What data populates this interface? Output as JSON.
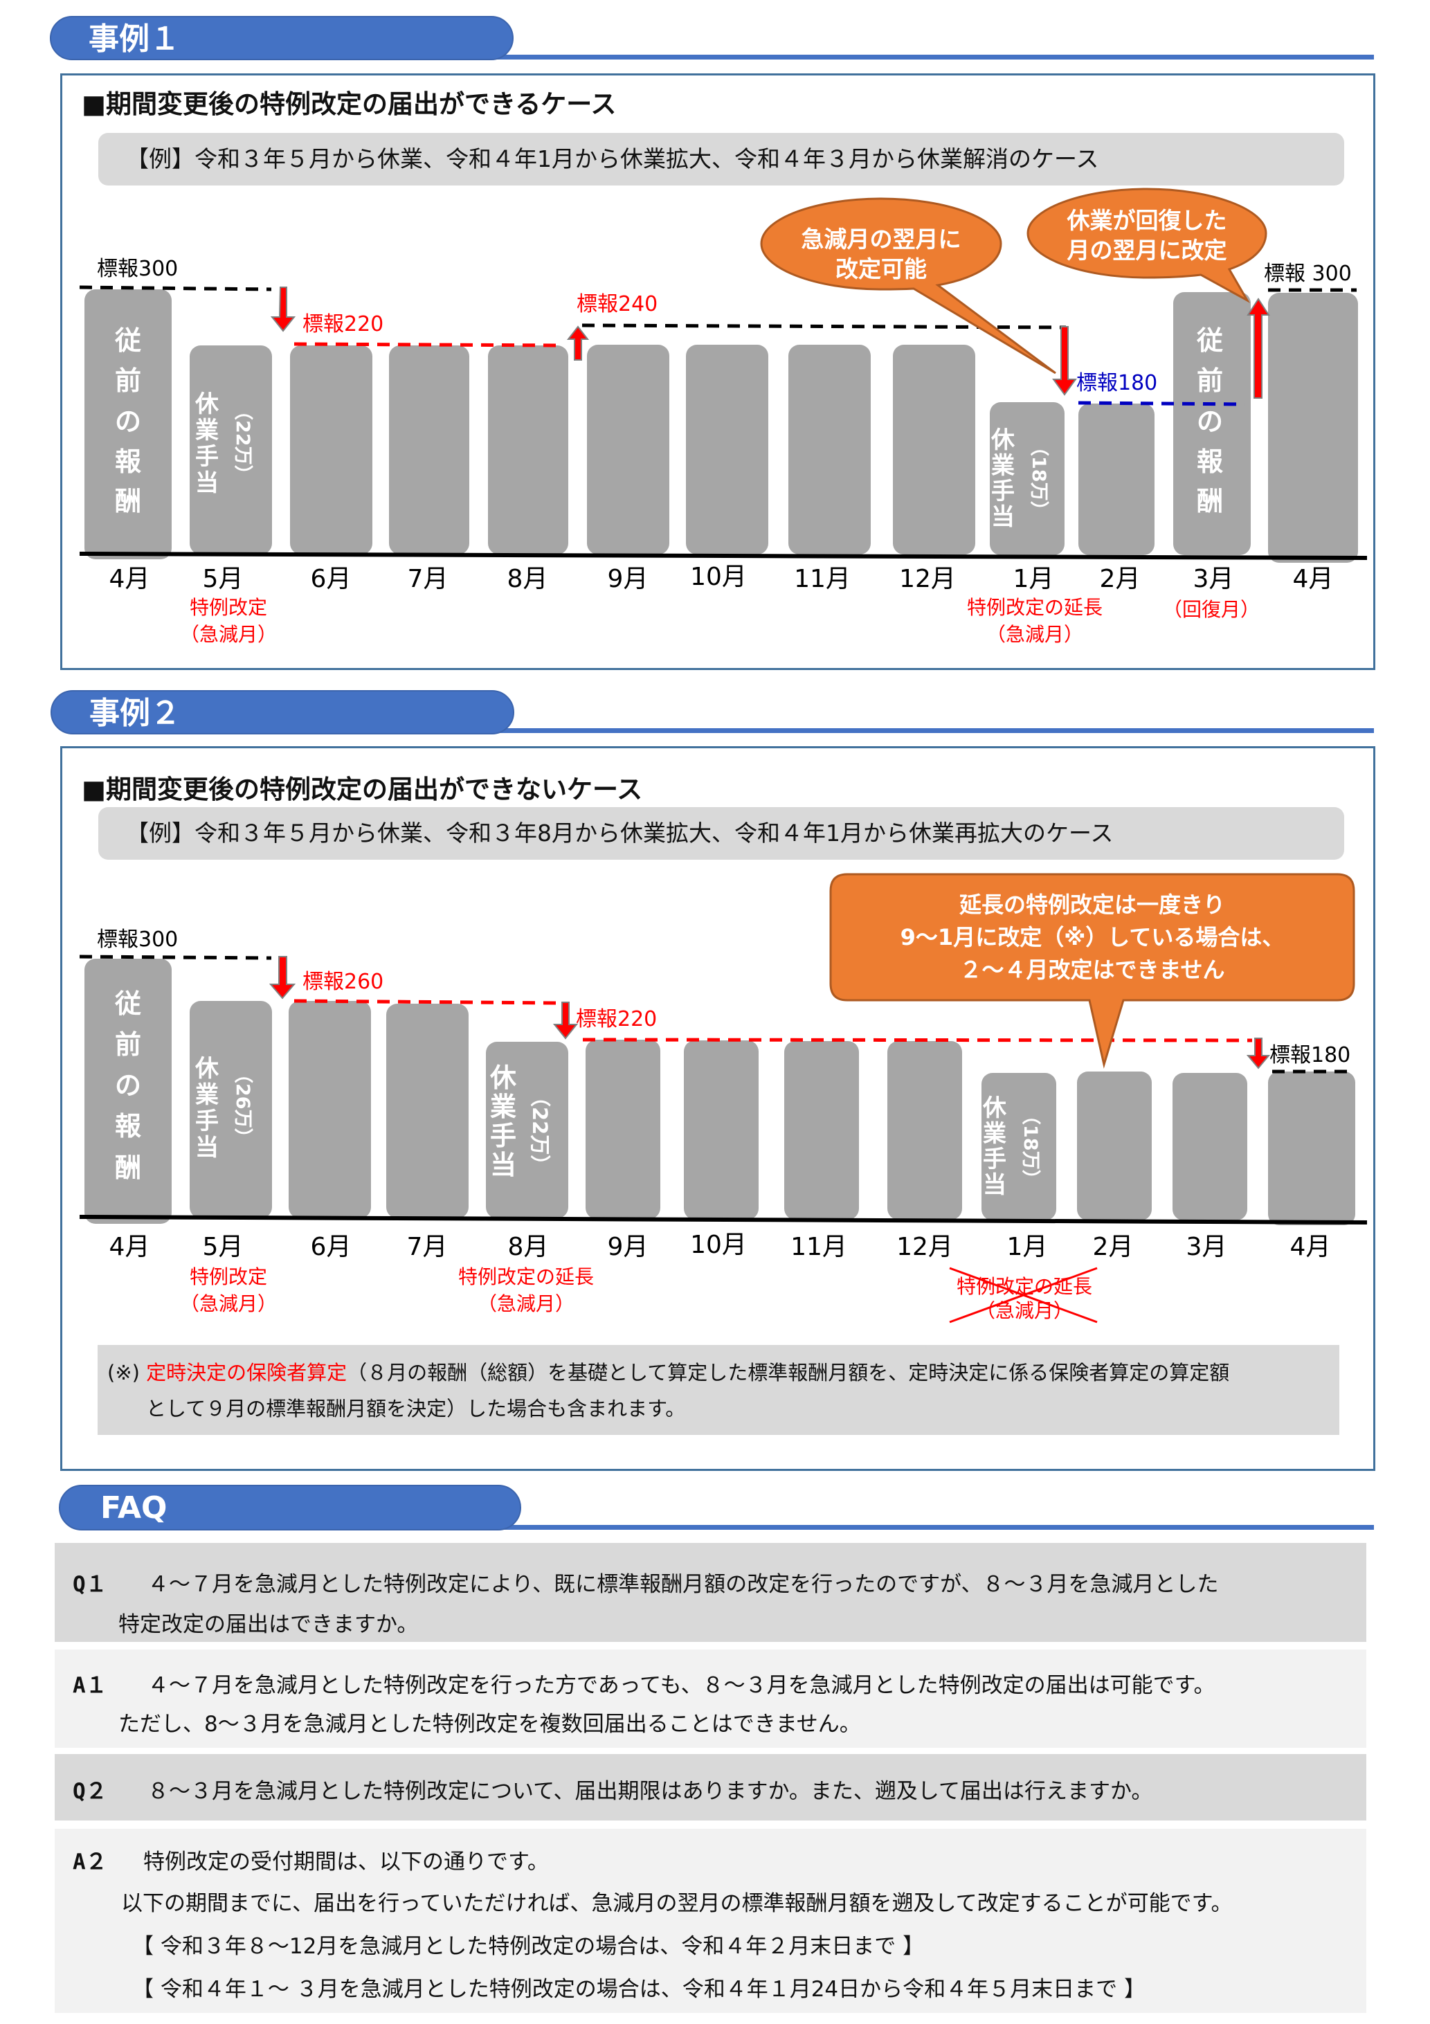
{
  "case1": {
    "header": "事例１",
    "title": "■期間変更後の特例改定の届出ができるケース",
    "example": "【例】令和３年５月から休業、令和４年1月から休業拡大、令和４年３月から休業解消のケース",
    "months": [
      "4月",
      "5月",
      "6月",
      "7月",
      "8月",
      "9月",
      "10月",
      "11月",
      "12月",
      "1月",
      "2月",
      "3月",
      "4月"
    ],
    "bar_labels": {
      "prior_pay": [
        "従",
        "前",
        "の",
        "報",
        "酬"
      ],
      "leave_allowance": [
        "休",
        "業",
        "手",
        "当"
      ],
      "may_amount": "（22万）",
      "jan_amount": "（18万）"
    },
    "standard_labels": {
      "s300": "標報300",
      "s220": "標報220",
      "s240": "標報240",
      "s180": "標報180",
      "s300_end": "標報 300"
    },
    "sublabels": {
      "may_line1": "特例改定",
      "may_line2": "（急減月）",
      "jan_line1": "特例改定の延長",
      "jan_line2": "（急減月）",
      "mar_line1": "（回復月）"
    },
    "callouts": {
      "bubble1_line1": "急減月の翌月に",
      "bubble1_line2": "改定可能",
      "bubble2_line1": "休業が回復した",
      "bubble2_line2": "月の翌月に改定"
    }
  },
  "case2": {
    "header": "事例２",
    "title": "■期間変更後の特例改定の届出ができないケース",
    "example": "【例】令和３年５月から休業、令和３年8月から休業拡大、令和４年1月から休業再拡大のケース",
    "months": [
      "4月",
      "5月",
      "6月",
      "7月",
      "8月",
      "9月",
      "10月",
      "11月",
      "12月",
      "1月",
      "2月",
      "3月",
      "4月"
    ],
    "bar_labels": {
      "prior_pay": [
        "従",
        "前",
        "の",
        "報",
        "酬"
      ],
      "leave_allowance": [
        "休",
        "業",
        "手",
        "当"
      ],
      "may_amount": "（26万）",
      "aug_amount": "（22万）",
      "jan_amount": "（18万）"
    },
    "standard_labels": {
      "s300": "標報300",
      "s260": "標報260",
      "s220": "標報220",
      "s180": "標報180"
    },
    "sublabels": {
      "may_line1": "特例改定",
      "may_line2": "（急減月）",
      "aug_line1": "特例改定の延長",
      "aug_line2": "（急減月）",
      "jan_line1": "特例改定の延長",
      "jan_line2": "（急減月）"
    },
    "callout": {
      "line1": "延長の特例改定は一度きり",
      "line2": "9～1月に改定（※）している場合は、",
      "line3": "２～４月改定はできません"
    },
    "note": {
      "prefix": "(※) ",
      "highlight": "定時決定の保険者算定",
      "rest_line1": "（８月の報酬（総額）を基礎として算定した標準報酬月額を、定時決定に係る保険者算定の算定額",
      "line2": "として９月の標準報酬月額を決定）した場合も含まれます。"
    }
  },
  "faq": {
    "header": "FAQ",
    "items": [
      {
        "label": "Q１",
        "lines": [
          "４～７月を急減月とした特例改定により、既に標準報酬月額の改定を行ったのですが、８～３月を急減月とした",
          "特定改定の届出はできますか。"
        ]
      },
      {
        "label": "A１",
        "lines": [
          "４～７月を急減月とした特例改定を行った方であっても、８～３月を急減月とした特例改定の届出は可能です。",
          "ただし、8～３月を急減月とした特例改定を複数回届出ることはできません。"
        ]
      },
      {
        "label": "Q２",
        "lines": [
          "８～３月を急減月とした特例改定について、届出期限はありますか。また、遡及して届出は行えますか。"
        ]
      },
      {
        "label": "A２",
        "lines": [
          "特例改定の受付期間は、以下の通りです。",
          "以下の期間までに、届出を行っていただければ、急減月の翌月の標準報酬月額を遡及して改定することが可能です。",
          "【 令和３年８～12月を急減月とした特例改定の場合は、令和４年２月末日まで 】",
          "【 令和４年１～ ３月を急減月とした特例改定の場合は、令和４年１月24日から令和４年５月末日まで 】"
        ]
      }
    ]
  },
  "colors": {
    "accent_blue": "#4472c4",
    "box_border": "#41719c",
    "bar_gray": "#a6a6a6",
    "callout_orange": "#ed7d31",
    "callout_border": "#ae5a21",
    "red": "#ff0000",
    "navy": "#0000c0",
    "panel_gray": "#d9d9d9",
    "panel_light": "#f2f2f2"
  }
}
